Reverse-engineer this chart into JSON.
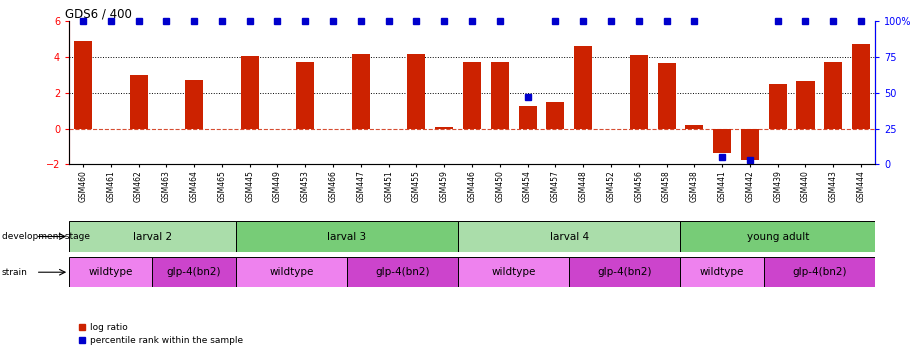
{
  "title": "GDS6 / 400",
  "samples": [
    "GSM460",
    "GSM461",
    "GSM462",
    "GSM463",
    "GSM464",
    "GSM465",
    "GSM445",
    "GSM449",
    "GSM453",
    "GSM466",
    "GSM447",
    "GSM451",
    "GSM455",
    "GSM459",
    "GSM446",
    "GSM450",
    "GSM454",
    "GSM457",
    "GSM448",
    "GSM452",
    "GSM456",
    "GSM458",
    "GSM438",
    "GSM441",
    "GSM442",
    "GSM439",
    "GSM440",
    "GSM443",
    "GSM444"
  ],
  "log_ratio": [
    4.9,
    0.0,
    3.0,
    0.0,
    2.7,
    0.0,
    4.05,
    0.0,
    3.7,
    0.0,
    4.15,
    0.0,
    4.15,
    0.07,
    3.75,
    3.7,
    1.25,
    1.5,
    4.6,
    0.0,
    4.1,
    3.65,
    0.2,
    -1.35,
    -1.75,
    2.5,
    2.65,
    3.75,
    4.75
  ],
  "percentile": [
    100,
    100,
    100,
    100,
    100,
    100,
    100,
    100,
    100,
    100,
    100,
    100,
    100,
    100,
    100,
    100,
    47,
    100,
    100,
    100,
    100,
    100,
    100,
    5,
    3,
    100,
    100,
    100,
    100
  ],
  "dev_stages": [
    {
      "label": "larval 2",
      "start": 0,
      "end": 5,
      "color": "#aaddaa"
    },
    {
      "label": "larval 3",
      "start": 6,
      "end": 13,
      "color": "#77cc77"
    },
    {
      "label": "larval 4",
      "start": 14,
      "end": 21,
      "color": "#aaddaa"
    },
    {
      "label": "young adult",
      "start": 22,
      "end": 28,
      "color": "#77cc77"
    }
  ],
  "strains": [
    {
      "label": "wildtype",
      "start": 0,
      "end": 2,
      "color": "#ee82ee"
    },
    {
      "label": "glp-4(bn2)",
      "start": 3,
      "end": 5,
      "color": "#cc44cc"
    },
    {
      "label": "wildtype",
      "start": 6,
      "end": 9,
      "color": "#ee82ee"
    },
    {
      "label": "glp-4(bn2)",
      "start": 10,
      "end": 13,
      "color": "#cc44cc"
    },
    {
      "label": "wildtype",
      "start": 14,
      "end": 17,
      "color": "#ee82ee"
    },
    {
      "label": "glp-4(bn2)",
      "start": 18,
      "end": 21,
      "color": "#cc44cc"
    },
    {
      "label": "wildtype",
      "start": 22,
      "end": 24,
      "color": "#ee82ee"
    },
    {
      "label": "glp-4(bn2)",
      "start": 25,
      "end": 28,
      "color": "#cc44cc"
    }
  ],
  "ylim": [
    -2,
    6
  ],
  "right_ylim": [
    0,
    100
  ],
  "bar_color": "#cc2200",
  "dot_color": "#0000cc",
  "background_color": "#ffffff",
  "left_yticks": [
    -2,
    0,
    2,
    4,
    6
  ],
  "right_yticks": [
    0,
    25,
    50,
    75,
    100
  ],
  "right_yticklabels": [
    "0",
    "25",
    "50",
    "75",
    "100%"
  ]
}
